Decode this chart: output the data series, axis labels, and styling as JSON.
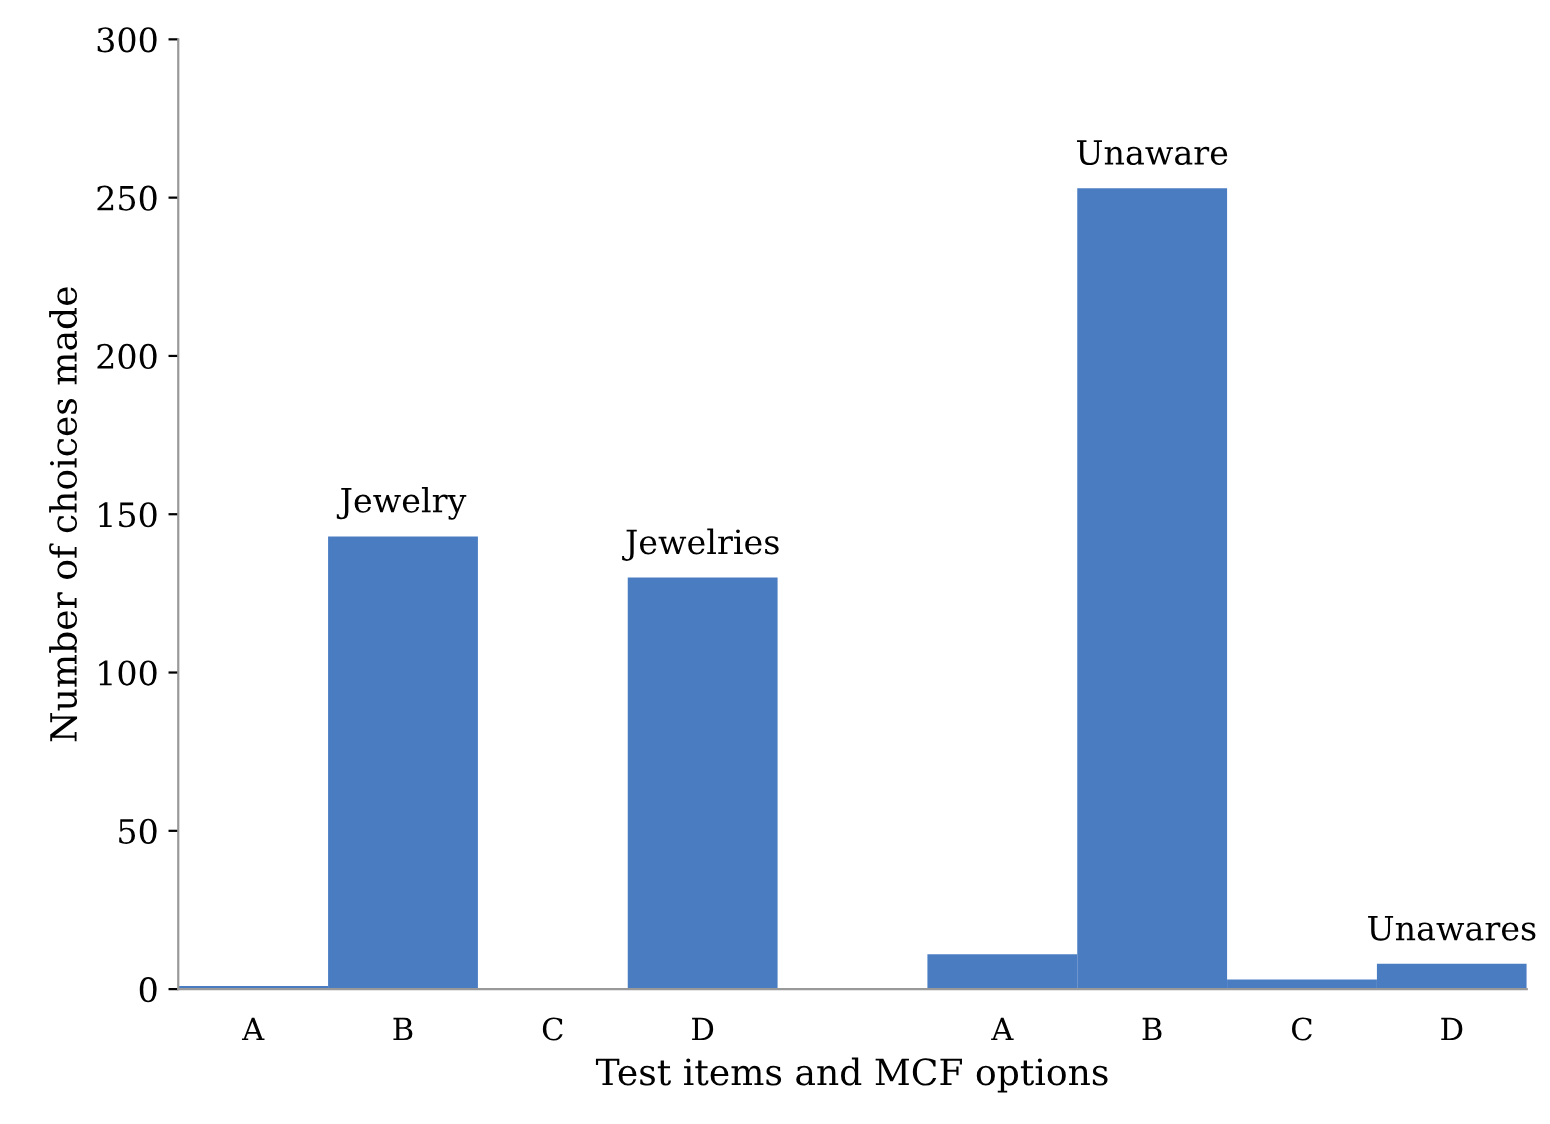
{
  "chart_data": {
    "type": "bar",
    "xlabel": "Test items and MCF options",
    "ylabel": "Number of choices made",
    "categories": [
      "A",
      "B",
      "C",
      "D",
      null,
      "A",
      "B",
      "C",
      "D"
    ],
    "values": [
      1,
      143,
      0,
      130,
      null,
      11,
      253,
      3,
      8
    ],
    "value_labels": [
      null,
      "Jewelry",
      null,
      "Jewelries",
      null,
      null,
      "Unaware",
      null,
      "Unawares"
    ],
    "color": "#4a7cc2",
    "ylim": [
      0,
      300
    ],
    "yticks": [
      0,
      50,
      100,
      150,
      200,
      250,
      300
    ],
    "grid": false,
    "legend": false
  }
}
